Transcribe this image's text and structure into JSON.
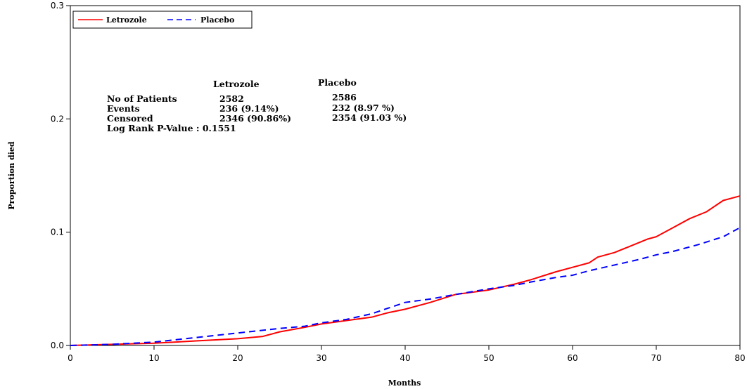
{
  "chart_data": {
    "type": "line",
    "xlabel": "Months",
    "ylabel": "Proportion died",
    "xlim": [
      0,
      80
    ],
    "ylim": [
      0,
      0.3
    ],
    "x_ticks": [
      0,
      10,
      20,
      30,
      40,
      50,
      60,
      70,
      80
    ],
    "x_tick_labels": [
      "0",
      "10",
      "20",
      "30",
      "40",
      "50",
      "60",
      "70",
      "80"
    ],
    "y_ticks": [
      0,
      0.1,
      0.2,
      0.3
    ],
    "y_tick_labels": [
      "0.0",
      "0.1",
      "0.2",
      "0.3"
    ],
    "grid": false,
    "legend_position": "top-left",
    "series": [
      {
        "name": "Letrozole",
        "color": "#ff0000",
        "style": "solid",
        "x": [
          0,
          5,
          10,
          15,
          20,
          23,
          25,
          28,
          30,
          33,
          36,
          38,
          40,
          43,
          46,
          50,
          53,
          55,
          58,
          60,
          62,
          63,
          65,
          67,
          69,
          70,
          72,
          74,
          76,
          78,
          80
        ],
        "y": [
          0,
          0.001,
          0.002,
          0.004,
          0.006,
          0.008,
          0.012,
          0.016,
          0.019,
          0.022,
          0.025,
          0.029,
          0.032,
          0.038,
          0.045,
          0.049,
          0.054,
          0.058,
          0.065,
          0.069,
          0.073,
          0.078,
          0.082,
          0.088,
          0.094,
          0.096,
          0.104,
          0.112,
          0.118,
          0.128,
          0.132
        ]
      },
      {
        "name": "Placebo",
        "color": "#0000ff",
        "style": "dashed",
        "x": [
          0,
          5,
          10,
          15,
          20,
          25,
          28,
          30,
          33,
          36,
          40,
          43,
          46,
          50,
          53,
          55,
          58,
          60,
          62,
          65,
          68,
          70,
          72,
          75,
          78,
          80
        ],
        "y": [
          0,
          0.001,
          0.003,
          0.007,
          0.011,
          0.015,
          0.017,
          0.02,
          0.023,
          0.028,
          0.038,
          0.041,
          0.045,
          0.05,
          0.053,
          0.056,
          0.06,
          0.062,
          0.066,
          0.071,
          0.076,
          0.08,
          0.083,
          0.089,
          0.096,
          0.104
        ]
      }
    ],
    "stats_table": {
      "col_headers": [
        "Letrozole",
        "Placebo"
      ],
      "rows": [
        {
          "label": "No of Patients",
          "letrozole": "2582",
          "placebo": "2586"
        },
        {
          "label": "Events",
          "letrozole": "236 (9.14%)",
          "placebo": "232 (8.97 %)"
        },
        {
          "label": "Censored",
          "letrozole": "2346 (90.86%)",
          "placebo": "2354 (91.03 %)"
        }
      ],
      "logrank": "Log Rank P-Value : 0.1551"
    }
  }
}
